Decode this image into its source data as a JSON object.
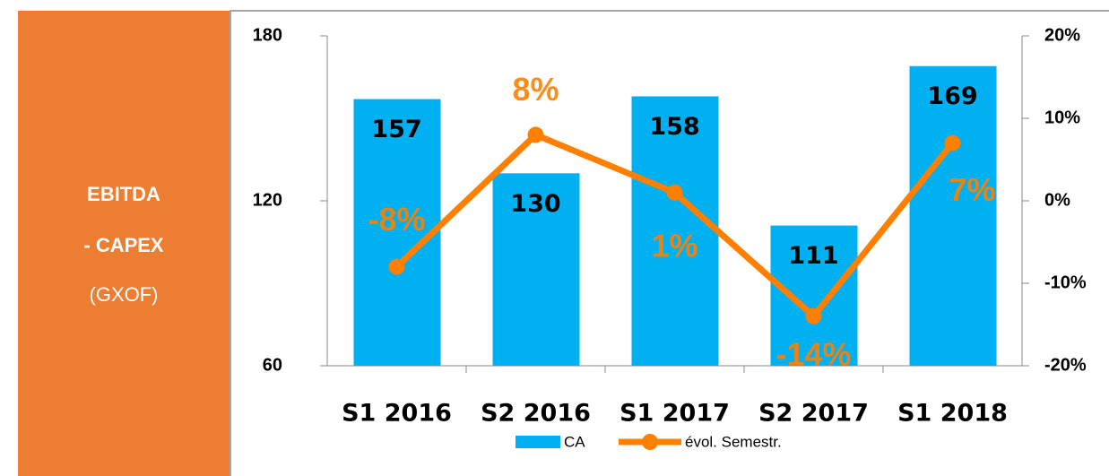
{
  "panel": {
    "title_line1": "EBITDA",
    "title_line2": "- CAPEX",
    "unit": "(GXOF)"
  },
  "chart_data": {
    "type": "bar",
    "categories": [
      "S1 2016",
      "S2 2016",
      "S1 2017",
      "S2 2017",
      "S1 2018"
    ],
    "ylim": [
      60,
      180
    ],
    "yticks": [
      60,
      120,
      180
    ],
    "y2lim": [
      -20,
      20
    ],
    "y2ticks": [
      {
        "value": -20,
        "label": "-20%"
      },
      {
        "value": -10,
        "label": "-10%"
      },
      {
        "value": 0,
        "label": "0%"
      },
      {
        "value": 10,
        "label": "10%"
      },
      {
        "value": 20,
        "label": "20%"
      }
    ],
    "series": [
      {
        "name": "CA",
        "type": "bar",
        "color": "#00b0f0",
        "values": [
          157,
          130,
          158,
          111,
          169
        ]
      },
      {
        "name": "évol. Semestr.",
        "type": "line",
        "axis": "y2",
        "color": "#ff7f00",
        "values": [
          -8,
          8,
          1,
          -14,
          7
        ],
        "value_labels": [
          "-8%",
          "8%",
          "1%",
          "-14%",
          "7%"
        ]
      }
    ]
  }
}
